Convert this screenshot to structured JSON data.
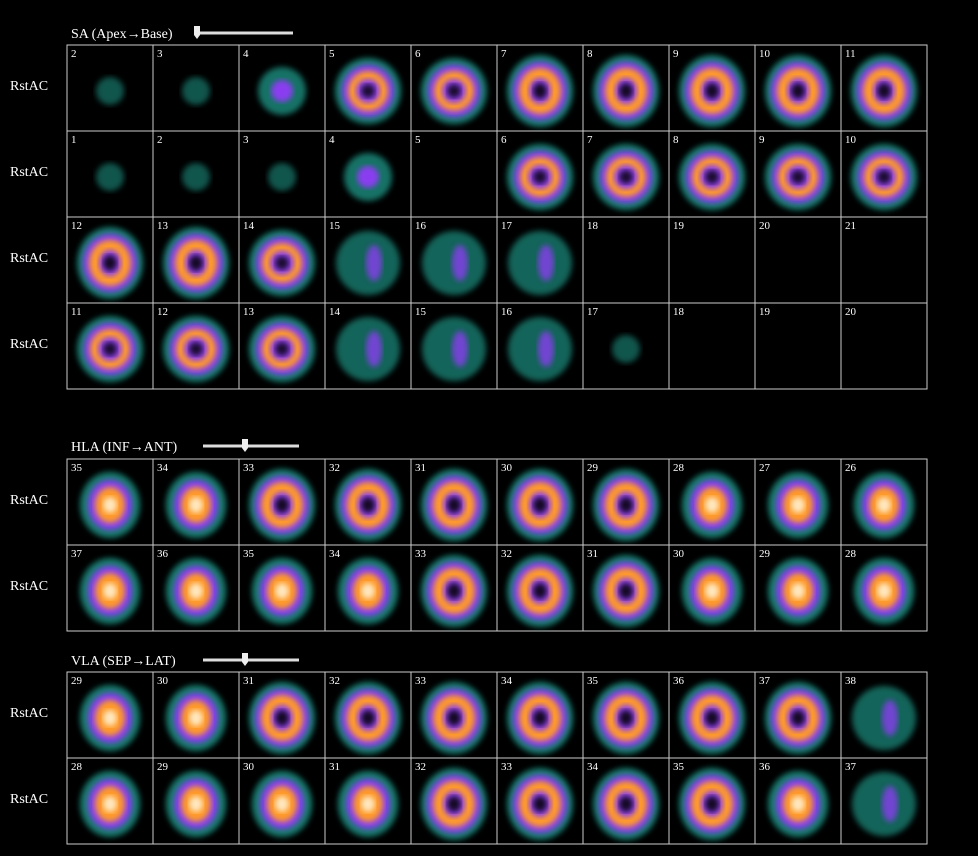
{
  "sections": [
    {
      "title": "SA (Apex→Base)",
      "rows": [
        {
          "label": "RstAC",
          "cells": [
            2,
            3,
            4,
            5,
            6,
            7,
            8,
            9,
            10,
            11
          ]
        },
        {
          "label": "RstAC",
          "cells": [
            1,
            2,
            3,
            4,
            5,
            6,
            7,
            8,
            9,
            10
          ]
        },
        {
          "label": "RstAC",
          "cells": [
            12,
            13,
            14,
            15,
            16,
            17,
            18,
            19,
            20,
            21
          ]
        },
        {
          "label": "RstAC",
          "cells": [
            11,
            12,
            13,
            14,
            15,
            16,
            17,
            18,
            19,
            20
          ]
        }
      ]
    },
    {
      "title": "HLA (INF→ANT)",
      "rows": [
        {
          "label": "RstAC",
          "cells": [
            35,
            34,
            33,
            32,
            31,
            30,
            29,
            28,
            27,
            26
          ]
        },
        {
          "label": "RstAC",
          "cells": [
            37,
            36,
            35,
            34,
            33,
            32,
            31,
            30,
            29,
            28
          ]
        }
      ]
    },
    {
      "title": "VLA (SEP→LAT)",
      "rows": [
        {
          "label": "RstAC",
          "cells": [
            29,
            30,
            31,
            32,
            33,
            34,
            35,
            36,
            37,
            38
          ]
        },
        {
          "label": "RstAC",
          "cells": [
            28,
            29,
            30,
            31,
            32,
            33,
            34,
            35,
            36,
            37
          ]
        }
      ]
    }
  ]
}
